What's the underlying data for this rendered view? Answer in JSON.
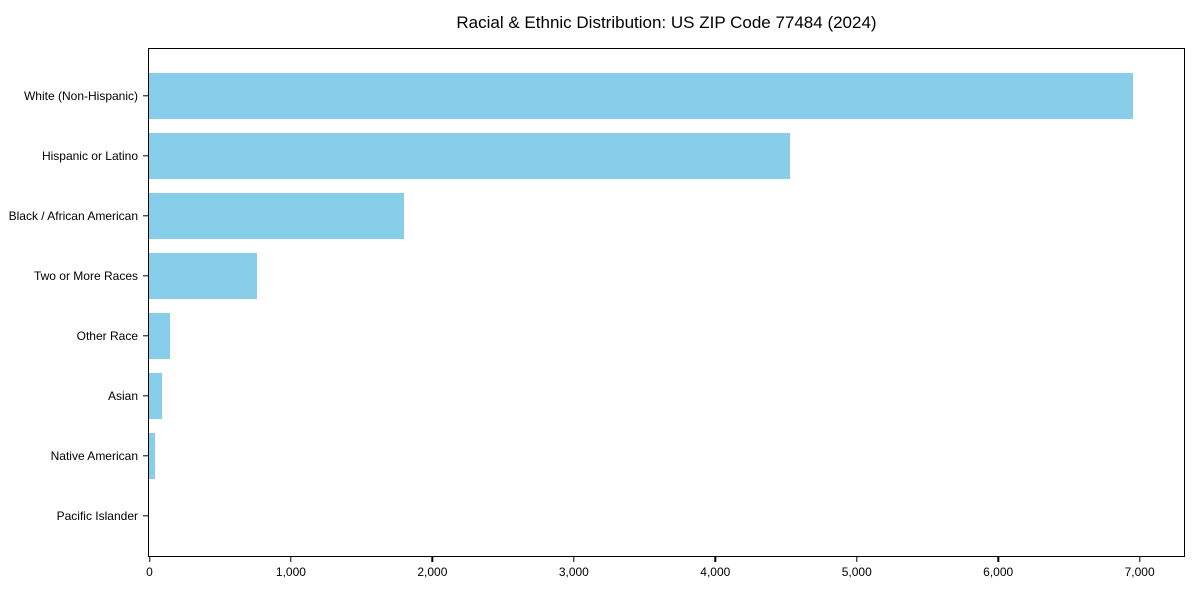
{
  "chart_data": {
    "type": "bar",
    "orientation": "horizontal",
    "title": "Racial & Ethnic Distribution: US ZIP Code 77484 (2024)",
    "categories": [
      "White (Non-Hispanic)",
      "Hispanic or Latino",
      "Black / African American",
      "Two or More Races",
      "Other Race",
      "Asian",
      "Native American",
      "Pacific Islander"
    ],
    "values": [
      6960,
      4530,
      1800,
      765,
      150,
      95,
      40,
      0
    ],
    "xlabel": "",
    "ylabel": "",
    "xlim": [
      0,
      7310
    ],
    "x_ticks": [
      0,
      1000,
      2000,
      3000,
      4000,
      5000,
      6000,
      7000
    ],
    "x_tick_labels": [
      "0",
      "1,000",
      "2,000",
      "3,000",
      "4,000",
      "5,000",
      "6,000",
      "7,000"
    ],
    "bar_color": "#87CEEB",
    "background_color": "#ffffff",
    "frame_color": "#000000",
    "grid": false,
    "legend": null
  }
}
